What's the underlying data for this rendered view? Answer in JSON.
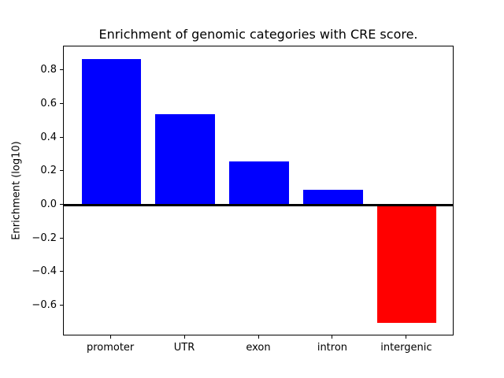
{
  "chart_data": {
    "type": "bar",
    "title": "Enrichment of genomic categories with CRE score.",
    "xlabel": "",
    "ylabel": "Enrichment (log10)",
    "categories": [
      "promoter",
      "UTR",
      "exon",
      "intron",
      "intergenic"
    ],
    "values": [
      0.87,
      0.54,
      0.26,
      0.09,
      -0.7
    ],
    "bar_colors": [
      "#0000ff",
      "#0000ff",
      "#0000ff",
      "#0000ff",
      "#ff0000"
    ],
    "positive_color": "#0000ff",
    "negative_color": "#ff0000",
    "bar_width": 0.8,
    "ylim": [
      -0.78,
      0.945
    ],
    "xlim": [
      -0.64,
      4.64
    ],
    "yticks": [
      {
        "value": -0.6,
        "label": "−0.6"
      },
      {
        "value": -0.4,
        "label": "−0.4"
      },
      {
        "value": -0.2,
        "label": "−0.2"
      },
      {
        "value": 0.0,
        "label": "0.0"
      },
      {
        "value": 0.2,
        "label": "0.2"
      },
      {
        "value": 0.4,
        "label": "0.4"
      },
      {
        "value": 0.6,
        "label": "0.6"
      },
      {
        "value": 0.8,
        "label": "0.8"
      }
    ],
    "zero_line": true,
    "grid": false,
    "legend": false,
    "axes_background": "#ffffff",
    "spine_color": "#000000"
  }
}
